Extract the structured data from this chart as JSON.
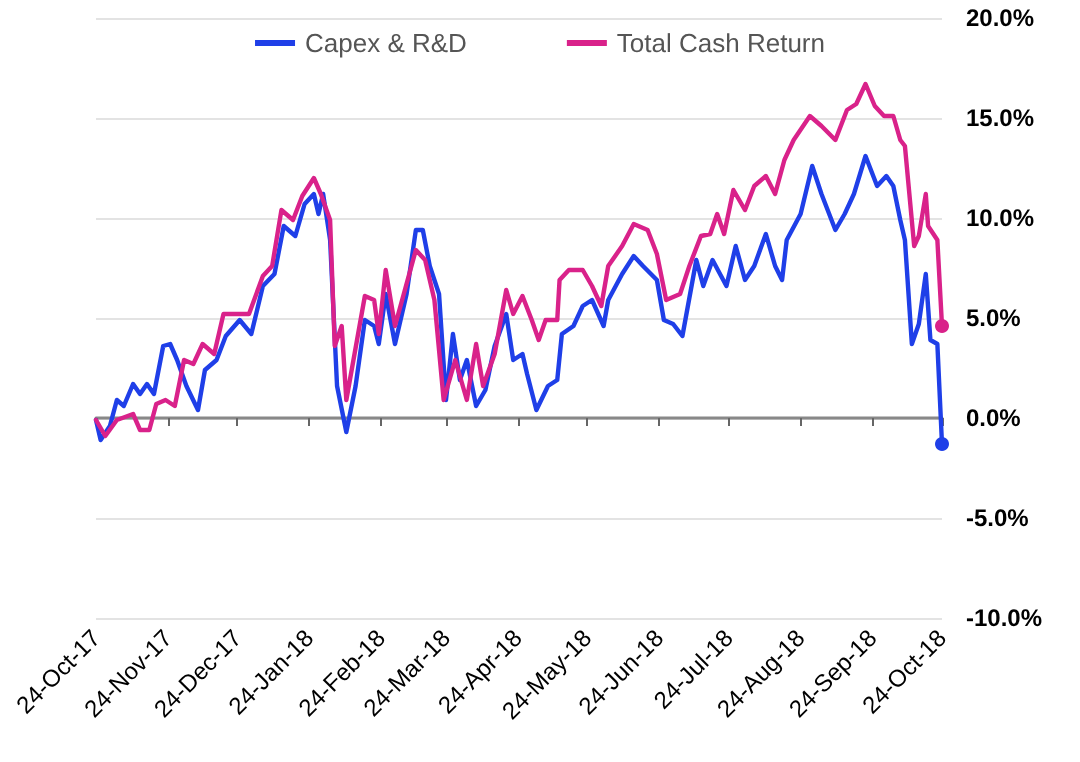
{
  "chart_data": {
    "type": "line",
    "legend": "top",
    "grid": "y",
    "marker": "none",
    "line_style": "solid",
    "xlim": [
      "2017-10-24",
      "2018-10-24"
    ],
    "xticks": [
      {
        "value": "2017-10-24",
        "label": "24-Oct-17"
      },
      {
        "value": "2017-11-24",
        "label": "24-Nov-17"
      },
      {
        "value": "2017-12-24",
        "label": "24-Dec-17"
      },
      {
        "value": "2018-01-24",
        "label": "24-Jan-18"
      },
      {
        "value": "2018-02-24",
        "label": "24-Feb-18"
      },
      {
        "value": "2018-03-24",
        "label": "24-Mar-18"
      },
      {
        "value": "2018-04-24",
        "label": "24-Apr-18"
      },
      {
        "value": "2018-05-24",
        "label": "24-May-18"
      },
      {
        "value": "2018-06-24",
        "label": "24-Jun-18"
      },
      {
        "value": "2018-07-24",
        "label": "24-Jul-18"
      },
      {
        "value": "2018-08-24",
        "label": "24-Aug-18"
      },
      {
        "value": "2018-09-24",
        "label": "24-Sep-18"
      },
      {
        "value": "2018-10-24",
        "label": "24-Oct-18"
      }
    ],
    "ylim": [
      -10,
      20
    ],
    "yticks": [
      {
        "value": -10,
        "label": "-10.0%"
      },
      {
        "value": -5,
        "label": "-5.0%"
      },
      {
        "value": 0,
        "label": "0.0%"
      },
      {
        "value": 5,
        "label": "5.0%"
      },
      {
        "value": 10,
        "label": "10.0%"
      },
      {
        "value": 15,
        "label": "15.0%"
      },
      {
        "value": 20,
        "label": "20.0%"
      }
    ],
    "series": [
      {
        "name": "Capex & R&D",
        "color": "#1f3fe8",
        "x": [
          "2017-10-24",
          "2017-10-26",
          "2017-10-30",
          "2017-11-02",
          "2017-11-05",
          "2017-11-09",
          "2017-11-12",
          "2017-11-15",
          "2017-11-18",
          "2017-11-22",
          "2017-11-25",
          "2017-11-28",
          "2017-12-02",
          "2017-12-07",
          "2017-12-10",
          "2017-12-15",
          "2017-12-19",
          "2017-12-25",
          "2017-12-30",
          "2018-01-04",
          "2018-01-09",
          "2018-01-13",
          "2018-01-18",
          "2018-01-22",
          "2018-01-26",
          "2018-01-28",
          "2018-01-30",
          "2018-02-02",
          "2018-02-05",
          "2018-02-09",
          "2018-02-13",
          "2018-02-17",
          "2018-02-21",
          "2018-02-23",
          "2018-02-26",
          "2018-03-02",
          "2018-03-07",
          "2018-03-11",
          "2018-03-14",
          "2018-03-17",
          "2018-03-21",
          "2018-03-24",
          "2018-03-27",
          "2018-03-30",
          "2018-04-02",
          "2018-04-06",
          "2018-04-10",
          "2018-04-14",
          "2018-04-19",
          "2018-04-22",
          "2018-04-26",
          "2018-04-28",
          "2018-05-02",
          "2018-05-07",
          "2018-05-11",
          "2018-05-13",
          "2018-05-18",
          "2018-05-22",
          "2018-05-26",
          "2018-05-31",
          "2018-06-02",
          "2018-06-08",
          "2018-06-13",
          "2018-06-17",
          "2018-06-23",
          "2018-06-26",
          "2018-06-30",
          "2018-07-04",
          "2018-07-10",
          "2018-07-13",
          "2018-07-17",
          "2018-07-23",
          "2018-07-27",
          "2018-07-31",
          "2018-08-04",
          "2018-08-09",
          "2018-08-13",
          "2018-08-16",
          "2018-08-18",
          "2018-08-24",
          "2018-08-29",
          "2018-09-02",
          "2018-09-08",
          "2018-09-12",
          "2018-09-16",
          "2018-09-21",
          "2018-09-26",
          "2018-09-30",
          "2018-10-03",
          "2018-10-06",
          "2018-10-08",
          "2018-10-11",
          "2018-10-14",
          "2018-10-17",
          "2018-10-19",
          "2018-10-22",
          "2018-10-24"
        ],
        "values": [
          -0.1,
          -1.1,
          -0.4,
          0.9,
          0.6,
          1.7,
          1.2,
          1.7,
          1.2,
          3.6,
          3.7,
          2.9,
          1.6,
          0.4,
          2.4,
          2.9,
          4.1,
          4.9,
          4.2,
          6.6,
          7.2,
          9.6,
          9.1,
          10.7,
          11.2,
          10.2,
          11.2,
          8.9,
          1.6,
          -0.7,
          1.6,
          4.9,
          4.6,
          3.7,
          6.2,
          3.7,
          6.2,
          9.4,
          9.4,
          7.6,
          6.2,
          0.9,
          4.2,
          1.9,
          2.9,
          0.6,
          1.4,
          3.6,
          5.2,
          2.9,
          3.2,
          2.2,
          0.4,
          1.6,
          1.9,
          4.2,
          4.6,
          5.6,
          5.9,
          4.6,
          5.9,
          7.2,
          8.1,
          7.6,
          6.9,
          4.9,
          4.7,
          4.1,
          7.9,
          6.6,
          7.9,
          6.6,
          8.6,
          6.9,
          7.6,
          9.2,
          7.6,
          6.9,
          8.9,
          10.2,
          12.6,
          11.2,
          9.4,
          10.2,
          11.2,
          13.1,
          11.6,
          12.1,
          11.6,
          9.9,
          8.9,
          3.7,
          4.7,
          7.2,
          3.9,
          3.7,
          -1.3
        ]
      },
      {
        "name": "Total Cash Return",
        "color": "#d9228a",
        "x": [
          "2017-10-24",
          "2017-10-28",
          "2017-11-02",
          "2017-11-09",
          "2017-11-12",
          "2017-11-16",
          "2017-11-19",
          "2017-11-23",
          "2017-11-27",
          "2017-12-01",
          "2017-12-05",
          "2017-12-09",
          "2017-12-14",
          "2017-12-18",
          "2017-12-23",
          "2017-12-29",
          "2018-01-04",
          "2018-01-08",
          "2018-01-12",
          "2018-01-17",
          "2018-01-21",
          "2018-01-26",
          "2018-01-29",
          "2018-02-02",
          "2018-02-04",
          "2018-02-07",
          "2018-02-09",
          "2018-02-17",
          "2018-02-21",
          "2018-02-23",
          "2018-02-26",
          "2018-03-02",
          "2018-03-11",
          "2018-03-15",
          "2018-03-19",
          "2018-03-23",
          "2018-03-28",
          "2018-04-02",
          "2018-04-06",
          "2018-04-09",
          "2018-04-14",
          "2018-04-19",
          "2018-04-22",
          "2018-04-26",
          "2018-04-30",
          "2018-05-03",
          "2018-05-06",
          "2018-05-11",
          "2018-05-12",
          "2018-05-16",
          "2018-05-22",
          "2018-05-26",
          "2018-05-30",
          "2018-06-02",
          "2018-06-08",
          "2018-06-13",
          "2018-06-19",
          "2018-06-23",
          "2018-06-27",
          "2018-07-03",
          "2018-07-07",
          "2018-07-12",
          "2018-07-16",
          "2018-07-19",
          "2018-07-22",
          "2018-07-26",
          "2018-07-31",
          "2018-08-04",
          "2018-08-09",
          "2018-08-13",
          "2018-08-17",
          "2018-08-21",
          "2018-08-28",
          "2018-09-02",
          "2018-09-08",
          "2018-09-13",
          "2018-09-17",
          "2018-09-21",
          "2018-09-25",
          "2018-09-29",
          "2018-10-03",
          "2018-10-06",
          "2018-10-08",
          "2018-10-12",
          "2018-10-14",
          "2018-10-17",
          "2018-10-18",
          "2018-10-22",
          "2018-10-24"
        ],
        "values": [
          -0.1,
          -0.9,
          -0.1,
          0.2,
          -0.6,
          -0.6,
          0.7,
          0.9,
          0.6,
          2.9,
          2.7,
          3.7,
          3.2,
          5.2,
          5.2,
          5.2,
          7.1,
          7.6,
          10.4,
          9.9,
          11.1,
          12.0,
          11.2,
          9.9,
          3.6,
          4.6,
          0.9,
          6.1,
          5.9,
          4.2,
          7.4,
          4.6,
          8.4,
          7.9,
          5.9,
          0.9,
          2.9,
          0.9,
          3.7,
          1.6,
          3.2,
          6.4,
          5.2,
          6.1,
          4.9,
          3.9,
          4.9,
          4.9,
          6.9,
          7.4,
          7.4,
          6.6,
          5.6,
          7.6,
          8.6,
          9.7,
          9.4,
          8.2,
          5.9,
          6.2,
          7.6,
          9.1,
          9.2,
          10.2,
          9.2,
          11.4,
          10.4,
          11.6,
          12.1,
          11.2,
          12.9,
          13.9,
          15.1,
          14.6,
          13.9,
          15.4,
          15.7,
          16.7,
          15.6,
          15.1,
          15.1,
          13.9,
          13.6,
          8.6,
          9.1,
          11.2,
          9.6,
          8.9,
          4.6
        ]
      }
    ]
  }
}
